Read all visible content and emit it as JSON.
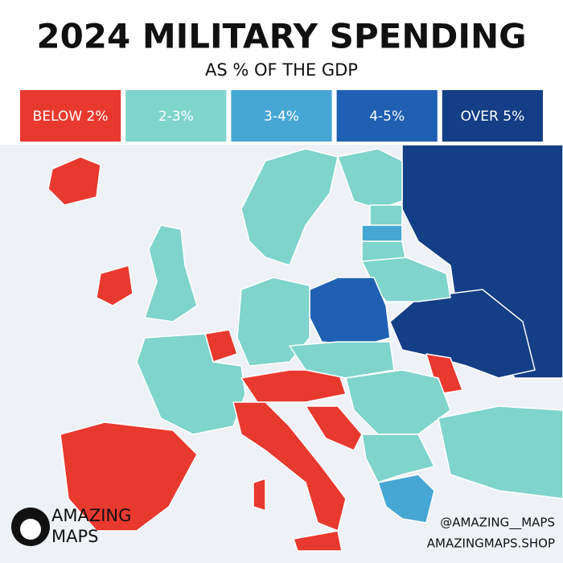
{
  "header": {
    "title": "2024 MILITARY SPENDING",
    "subtitle": "AS % OF THE GDP"
  },
  "legend": [
    {
      "label": "BELOW 2%",
      "color": "#e8392f"
    },
    {
      "label": "2-3%",
      "color": "#7fd4cc"
    },
    {
      "label": "3-4%",
      "color": "#47a7d4"
    },
    {
      "label": "4-5%",
      "color": "#1f60b3"
    },
    {
      "label": "OVER 5%",
      "color": "#143e85"
    }
  ],
  "branding": {
    "name_line1": "AMAZING",
    "name_line2": "MAPS",
    "handle": "@AMAZING__MAPS",
    "site": "AMAZINGMAPS.SHOP"
  }
}
